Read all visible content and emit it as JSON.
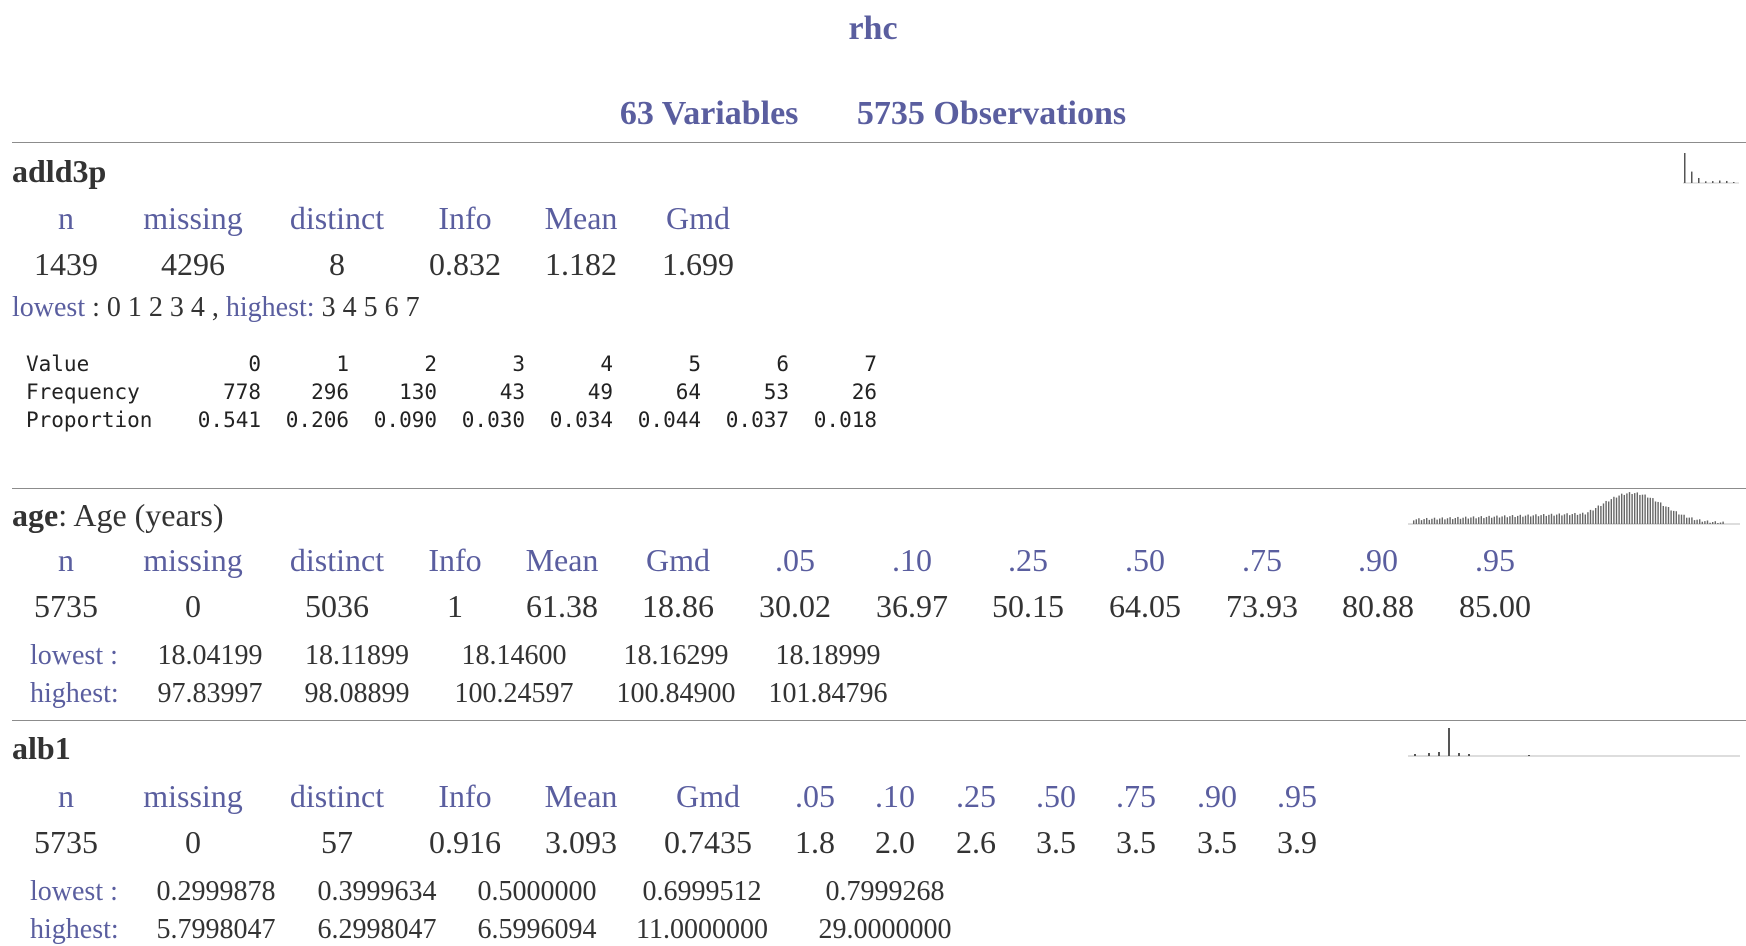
{
  "title": "rhc",
  "subtitle": {
    "variables": "63 Variables",
    "observations": "5735 Observations"
  },
  "vars": [
    {
      "name": "adld3p",
      "label": "",
      "stat_headers": [
        "n",
        "missing",
        "distinct",
        "Info",
        "Mean",
        "Gmd"
      ],
      "stat_values": [
        "1439",
        "4296",
        "8",
        "0.832",
        "1.182",
        "1.699"
      ],
      "lowest_label": "lowest",
      "lowest_values": "0 1 2 3 4",
      "highest_label": "highest:",
      "highest_values": "3 4 5 6 7",
      "freq_table": {
        "row_labels": [
          "Value",
          "Frequency",
          "Proportion"
        ],
        "values": [
          "0",
          "1",
          "2",
          "3",
          "4",
          "5",
          "6",
          "7"
        ],
        "frequency": [
          "778",
          "296",
          "130",
          "43",
          "49",
          "64",
          "53",
          "26"
        ],
        "proportion": [
          "0.541",
          "0.206",
          "0.090",
          "0.030",
          "0.034",
          "0.044",
          "0.037",
          "0.018"
        ]
      },
      "spark": [
        778,
        296,
        130,
        43,
        49,
        64,
        53,
        26
      ]
    },
    {
      "name": "age",
      "label": "Age (years)",
      "stat_headers": [
        "n",
        "missing",
        "distinct",
        "Info",
        "Mean",
        "Gmd",
        ".05",
        ".10",
        ".25",
        ".50",
        ".75",
        ".90",
        ".95"
      ],
      "stat_values": [
        "5735",
        "0",
        "5036",
        "1",
        "61.38",
        "18.86",
        "30.02",
        "36.97",
        "50.15",
        "64.05",
        "73.93",
        "80.88",
        "85.00"
      ],
      "lowest_label": "lowest :",
      "lowest_values": [
        "18.04199",
        "18.11899",
        "18.14600",
        "18.16299",
        "18.18999"
      ],
      "highest_label": "highest:",
      "highest_values": [
        "97.83997",
        "98.08899",
        "100.24597",
        "100.84900",
        "101.84796"
      ]
    },
    {
      "name": "alb1",
      "label": "",
      "stat_headers": [
        "n",
        "missing",
        "distinct",
        "Info",
        "Mean",
        "Gmd",
        ".05",
        ".10",
        ".25",
        ".50",
        ".75",
        ".90",
        ".95"
      ],
      "stat_values": [
        "5735",
        "0",
        "57",
        "0.916",
        "3.093",
        "0.7435",
        "1.8",
        "2.0",
        "2.6",
        "3.5",
        "3.5",
        "3.5",
        "3.9"
      ],
      "lowest_label": "lowest :",
      "lowest_values": [
        "0.2999878",
        "0.3999634",
        "0.5000000",
        "0.6999512",
        "0.7999268"
      ],
      "highest_label": "highest:",
      "highest_values": [
        "5.7998047",
        "6.2998047",
        "6.5996094",
        "11.0000000",
        "29.0000000"
      ]
    }
  ]
}
